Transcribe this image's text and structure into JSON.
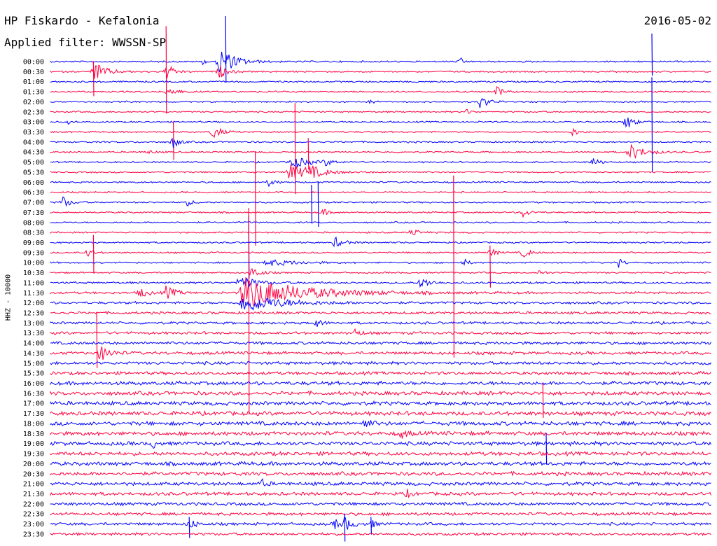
{
  "header": {
    "title": "HP Fiskardo - Kefalonia",
    "date": "2016-05-02",
    "filter": "Applied filter: WWSSN-SP"
  },
  "chart_data": {
    "type": "line",
    "title": "HP Fiskardo - Kefalonia",
    "subtitle": "Applied filter: WWSSN-SP",
    "ylabel": "HHZ - 10000",
    "y_tick_labels": [
      "00:00",
      "00:30",
      "01:00",
      "01:30",
      "02:00",
      "02:30",
      "03:00",
      "03:30",
      "04:00",
      "04:30",
      "05:00",
      "05:30",
      "06:00",
      "06:30",
      "07:00",
      "07:30",
      "08:00",
      "08:30",
      "09:00",
      "09:30",
      "10:00",
      "10:30",
      "11:00",
      "11:30",
      "12:00",
      "12:30",
      "13:00",
      "13:30",
      "14:00",
      "14:30",
      "15:00",
      "15:30",
      "16:00",
      "16:30",
      "17:00",
      "17:30",
      "18:00",
      "18:30",
      "19:00",
      "19:30",
      "20:00",
      "20:30",
      "21:00",
      "21:30",
      "22:00",
      "22:30",
      "23:00",
      "23:30"
    ],
    "colors": [
      "#0000ff",
      "#ff0040"
    ],
    "minutes_per_line": 30,
    "grid": false,
    "noise_amplitude": [
      1,
      1,
      1,
      1,
      1,
      1,
      1,
      1,
      1,
      1,
      1,
      1,
      1,
      1,
      1,
      1,
      1,
      1,
      1,
      1,
      1,
      1,
      1.3,
      1.4,
      1.5,
      1.6,
      1.6,
      1.7,
      1.8,
      1.9,
      2,
      2,
      2.3,
      2.4,
      2.4,
      2.5,
      2.5,
      2.5,
      2.4,
      2.4,
      2.4,
      2.3,
      2.2,
      2.1,
      2,
      1.9,
      1.8,
      1.7
    ],
    "events": [
      {
        "line": 0,
        "x": 0.255,
        "amp": 22,
        "dur": 0.02
      },
      {
        "line": 0,
        "x": 0.23,
        "amp": 4,
        "dur": 0.005
      },
      {
        "line": 0,
        "x": 0.62,
        "amp": 5,
        "dur": 0.006
      },
      {
        "line": 1,
        "x": 0.065,
        "amp": 16,
        "dur": 0.015
      },
      {
        "line": 1,
        "x": 0.175,
        "amp": 12,
        "dur": 0.01
      },
      {
        "line": 1,
        "x": 0.255,
        "amp": 10,
        "dur": 0.01
      },
      {
        "line": 3,
        "x": 0.178,
        "amp": 10,
        "dur": 0.01
      },
      {
        "line": 3,
        "x": 0.675,
        "amp": 8,
        "dur": 0.008
      },
      {
        "line": 4,
        "x": 0.65,
        "amp": 10,
        "dur": 0.01
      },
      {
        "line": 4,
        "x": 0.485,
        "amp": 4,
        "dur": 0.005
      },
      {
        "line": 5,
        "x": 0.63,
        "amp": 4,
        "dur": 0.006
      },
      {
        "line": 6,
        "x": 0.87,
        "amp": 12,
        "dur": 0.01
      },
      {
        "line": 6,
        "x": 0.025,
        "amp": 4,
        "dur": 0.004
      },
      {
        "line": 7,
        "x": 0.245,
        "amp": 12,
        "dur": 0.01
      },
      {
        "line": 7,
        "x": 0.79,
        "amp": 6,
        "dur": 0.008
      },
      {
        "line": 8,
        "x": 0.185,
        "amp": 10,
        "dur": 0.008
      },
      {
        "line": 9,
        "x": 0.875,
        "amp": 12,
        "dur": 0.02
      },
      {
        "line": 9,
        "x": 0.145,
        "amp": 3,
        "dur": 0.01
      },
      {
        "line": 10,
        "x": 0.365,
        "amp": 10,
        "dur": 0.02
      },
      {
        "line": 10,
        "x": 0.415,
        "amp": 5,
        "dur": 0.01
      },
      {
        "line": 10,
        "x": 0.82,
        "amp": 8,
        "dur": 0.008
      },
      {
        "line": 11,
        "x": 0.36,
        "amp": 12,
        "dur": 0.03
      },
      {
        "line": 11,
        "x": 0.39,
        "amp": 8,
        "dur": 0.015
      },
      {
        "line": 12,
        "x": 0.33,
        "amp": 6,
        "dur": 0.008
      },
      {
        "line": 14,
        "x": 0.018,
        "amp": 9,
        "dur": 0.01
      },
      {
        "line": 14,
        "x": 0.205,
        "amp": 6,
        "dur": 0.008
      },
      {
        "line": 15,
        "x": 0.41,
        "amp": 6,
        "dur": 0.008
      },
      {
        "line": 15,
        "x": 0.715,
        "amp": 7,
        "dur": 0.008
      },
      {
        "line": 17,
        "x": 0.545,
        "amp": 8,
        "dur": 0.008
      },
      {
        "line": 18,
        "x": 0.43,
        "amp": 8,
        "dur": 0.012
      },
      {
        "line": 19,
        "x": 0.055,
        "amp": 7,
        "dur": 0.008
      },
      {
        "line": 19,
        "x": 0.665,
        "amp": 7,
        "dur": 0.008
      },
      {
        "line": 19,
        "x": 0.715,
        "amp": 9,
        "dur": 0.008
      },
      {
        "line": 20,
        "x": 0.325,
        "amp": 5,
        "dur": 0.04
      },
      {
        "line": 20,
        "x": 0.625,
        "amp": 6,
        "dur": 0.006
      },
      {
        "line": 20,
        "x": 0.86,
        "amp": 8,
        "dur": 0.006
      },
      {
        "line": 21,
        "x": 0.305,
        "amp": 10,
        "dur": 0.01
      },
      {
        "line": 21,
        "x": 0.74,
        "amp": 5,
        "dur": 0.006
      },
      {
        "line": 22,
        "x": 0.285,
        "amp": 12,
        "dur": 0.02
      },
      {
        "line": 22,
        "x": 0.56,
        "amp": 9,
        "dur": 0.012
      },
      {
        "line": 23,
        "x": 0.135,
        "amp": 8,
        "dur": 0.01
      },
      {
        "line": 23,
        "x": 0.175,
        "amp": 10,
        "dur": 0.012
      },
      {
        "line": 23,
        "x": 0.29,
        "amp": 24,
        "dur": 0.08
      },
      {
        "line": 24,
        "x": 0.29,
        "amp": 14,
        "dur": 0.05
      },
      {
        "line": 26,
        "x": 0.4,
        "amp": 7,
        "dur": 0.008
      },
      {
        "line": 27,
        "x": 0.46,
        "amp": 6,
        "dur": 0.008
      },
      {
        "line": 29,
        "x": 0.075,
        "amp": 12,
        "dur": 0.012
      },
      {
        "line": 36,
        "x": 0.475,
        "amp": 8,
        "dur": 0.008
      },
      {
        "line": 37,
        "x": 0.53,
        "amp": 7,
        "dur": 0.008
      },
      {
        "line": 38,
        "x": 0.155,
        "amp": 6,
        "dur": 0.006
      },
      {
        "line": 42,
        "x": 0.32,
        "amp": 6,
        "dur": 0.006
      },
      {
        "line": 43,
        "x": 0.54,
        "amp": 5,
        "dur": 0.006
      },
      {
        "line": 46,
        "x": 0.21,
        "amp": 8,
        "dur": 0.008
      },
      {
        "line": 46,
        "x": 0.43,
        "amp": 7,
        "dur": 0.01
      },
      {
        "line": 46,
        "x": 0.445,
        "amp": 9,
        "dur": 0.01
      },
      {
        "line": 46,
        "x": 0.485,
        "amp": 6,
        "dur": 0.006
      }
    ],
    "spikes": [
      {
        "line": 0,
        "x": 0.265,
        "up": 65,
        "down": 30
      },
      {
        "line": 0,
        "x": 0.91,
        "up": 40,
        "down": 20
      },
      {
        "line": 1,
        "x": 0.175,
        "up": 65,
        "down": 60
      },
      {
        "line": 1,
        "x": 0.065,
        "up": 15,
        "down": 35
      },
      {
        "line": 4,
        "x": 0.91,
        "up": 35,
        "down": 100
      },
      {
        "line": 7,
        "x": 0.186,
        "up": 15,
        "down": 40
      },
      {
        "line": 9,
        "x": 0.37,
        "up": 70,
        "down": 60
      },
      {
        "line": 9,
        "x": 0.39,
        "up": 20,
        "down": 25
      },
      {
        "line": 11,
        "x": 0.31,
        "up": 30,
        "down": 105
      },
      {
        "line": 14,
        "x": 0.405,
        "up": 30,
        "down": 35
      },
      {
        "line": 14,
        "x": 0.395,
        "up": 25,
        "down": 30
      },
      {
        "line": 16,
        "x": 0.3,
        "up": 10,
        "down": 80
      },
      {
        "line": 17,
        "x": 0.3,
        "up": 35,
        "down": 260
      },
      {
        "line": 19,
        "x": 0.61,
        "up": 110,
        "down": 150
      },
      {
        "line": 19,
        "x": 0.665,
        "up": 10,
        "down": 50
      },
      {
        "line": 19,
        "x": 0.065,
        "up": 25,
        "down": 30
      },
      {
        "line": 27,
        "x": 0.07,
        "up": 30,
        "down": 50
      },
      {
        "line": 33,
        "x": 0.745,
        "up": 15,
        "down": 35
      },
      {
        "line": 38,
        "x": 0.75,
        "up": 15,
        "down": 30
      },
      {
        "line": 46,
        "x": 0.445,
        "up": 15,
        "down": 25
      },
      {
        "line": 46,
        "x": 0.485,
        "up": 10,
        "down": 15
      },
      {
        "line": 46,
        "x": 0.21,
        "up": 10,
        "down": 20
      }
    ]
  }
}
